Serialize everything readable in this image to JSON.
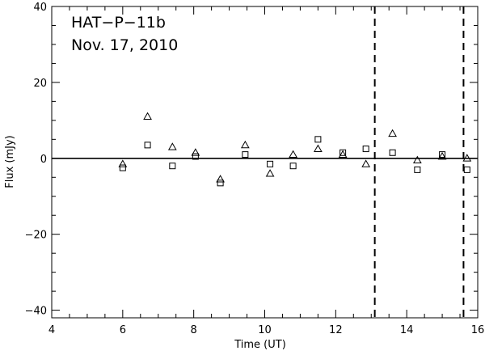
{
  "chart_data": {
    "type": "scatter",
    "xlabel": "Time (UT)",
    "ylabel": "Flux (mJy)",
    "xlim": [
      4,
      16
    ],
    "ylim": [
      -42,
      40
    ],
    "xticks": [
      4,
      6,
      8,
      10,
      12,
      14,
      16
    ],
    "yticks": [
      -40,
      -20,
      0,
      20,
      40
    ],
    "xtick_labels": [
      "4",
      "6",
      "8",
      "10",
      "12",
      "14",
      "16"
    ],
    "ytick_labels": [
      "−40",
      "−20",
      "0",
      "20",
      "40"
    ],
    "annotations": [
      "HAT−P−11b",
      "Nov. 17, 2010"
    ],
    "reference_lines": {
      "horizontal": [
        0
      ],
      "vertical_dashed": [
        13.1,
        15.6
      ]
    },
    "grid": false,
    "series": [
      {
        "marker": "triangle",
        "x": [
          6.0,
          6.7,
          7.4,
          8.05,
          8.75,
          9.45,
          10.15,
          10.8,
          11.5,
          12.2,
          12.85,
          13.6,
          14.3,
          15.0,
          15.7
        ],
        "y": [
          -1.5,
          11.0,
          3.0,
          1.5,
          -5.5,
          3.5,
          -4.0,
          1.0,
          2.5,
          1.0,
          -1.5,
          6.5,
          -0.5,
          0.5,
          0.0
        ]
      },
      {
        "marker": "square",
        "x": [
          6.0,
          6.7,
          7.4,
          8.05,
          8.75,
          9.45,
          10.15,
          10.8,
          11.5,
          12.2,
          12.85,
          13.6,
          14.3,
          15.0,
          15.7
        ],
        "y": [
          -2.5,
          3.5,
          -2.0,
          0.5,
          -6.5,
          1.0,
          -1.5,
          -2.0,
          5.0,
          1.5,
          2.5,
          1.5,
          -3.0,
          1.0,
          -3.0
        ]
      }
    ]
  }
}
